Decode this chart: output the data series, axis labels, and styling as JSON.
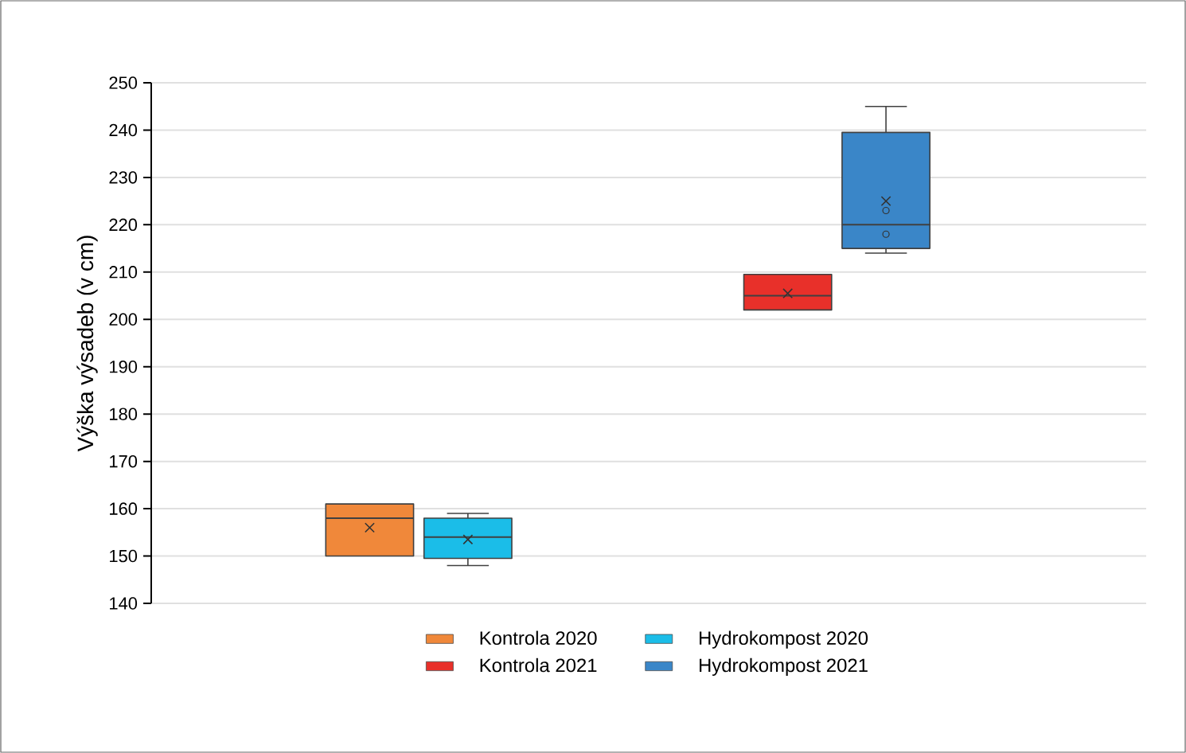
{
  "chart_data": {
    "type": "box",
    "ylabel": "Výška výsadeb (v cm)",
    "categories": [
      null,
      null
    ],
    "series": [
      {
        "name": "Kontrola 2020",
        "color": "#f0883a",
        "boxes": [
          {
            "low": 150,
            "q1": 150,
            "median": 158,
            "q3": 161,
            "high": 161,
            "mean": 156
          },
          null
        ]
      },
      {
        "name": "Hydrokompost 2020",
        "color": "#1bbde8",
        "boxes": [
          {
            "low": 148,
            "q1": 149.5,
            "median": 154,
            "q3": 158,
            "high": 159,
            "mean": 153.5
          },
          null
        ]
      },
      {
        "name": "Kontrola 2021",
        "color": "#e8302a",
        "boxes": [
          null,
          {
            "low": 202,
            "q1": 202,
            "median": 205,
            "q3": 209.5,
            "high": 209.5,
            "mean": 205.5
          }
        ]
      },
      {
        "name": "Hydrokompost 2021",
        "color": "#3a86c8",
        "boxes": [
          null,
          {
            "low": 214,
            "q1": 215,
            "median": 220,
            "q3": 239.5,
            "high": 245,
            "mean": 225,
            "outliers": [
              223,
              218
            ]
          }
        ]
      }
    ],
    "ylim": [
      140,
      250
    ],
    "yticks": [
      140,
      150,
      160,
      170,
      180,
      190,
      200,
      210,
      220,
      230,
      240,
      250
    ],
    "grid": "y",
    "legend": "bottom"
  }
}
